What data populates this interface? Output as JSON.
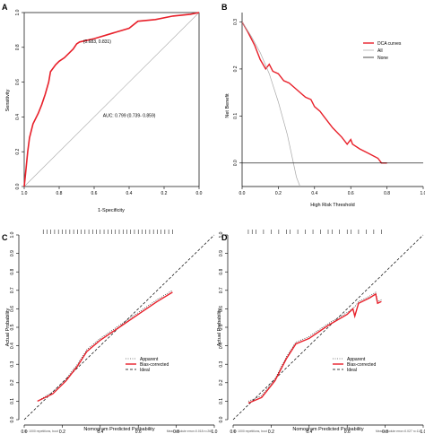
{
  "colors": {
    "red": "#e8202a",
    "grey": "#a8a8a8",
    "black": "#000000"
  },
  "chart_data": [
    {
      "panel": "A",
      "type": "line",
      "xlabel": "1-Specificity",
      "ylabel": "Sensitivity",
      "x_reversed": true,
      "xlim": [
        1.0,
        0.0
      ],
      "ylim": [
        0.0,
        1.0
      ],
      "xticks": [
        "1.0",
        "0.8",
        "0.6",
        "0.4",
        "0.2",
        "0.0"
      ],
      "yticks": [
        "0.0",
        "0.2",
        "0.4",
        "0.6",
        "0.8",
        "1.0"
      ],
      "point_label": "(0.683, 0.831)",
      "auc_label": "AUC: 0.799 (0.739- 0.859)",
      "series": [
        {
          "x": [
            1.0,
            0.99,
            0.98,
            0.97,
            0.95,
            0.92,
            0.9,
            0.88,
            0.86,
            0.85,
            0.82,
            0.8,
            0.77,
            0.74,
            0.72,
            0.7,
            0.683,
            0.6,
            0.5,
            0.4,
            0.35,
            0.25,
            0.15,
            0.05,
            0.0
          ],
          "y": [
            0.0,
            0.1,
            0.2,
            0.28,
            0.36,
            0.42,
            0.47,
            0.53,
            0.6,
            0.66,
            0.7,
            0.72,
            0.74,
            0.77,
            0.79,
            0.82,
            0.831,
            0.85,
            0.88,
            0.91,
            0.95,
            0.96,
            0.98,
            0.99,
            1.0
          ]
        },
        {
          "x": [
            1.0,
            0.0
          ],
          "y": [
            0.0,
            1.0
          ]
        }
      ]
    },
    {
      "panel": "B",
      "type": "line",
      "xlabel": "High Risk Threshold",
      "ylabel": "Net Benefit",
      "xlim": [
        0.0,
        1.0
      ],
      "ylim": [
        -0.05,
        0.32
      ],
      "xticks": [
        "0.0",
        "0.2",
        "0.4",
        "0.6",
        "0.8",
        "1.0"
      ],
      "yticks": [
        "0.0",
        "0.1",
        "0.2",
        "0.3"
      ],
      "legend": [
        "DCA curves",
        "All",
        "None"
      ],
      "series": [
        {
          "name": "DCA curves",
          "x": [
            0.0,
            0.03,
            0.07,
            0.1,
            0.13,
            0.15,
            0.17,
            0.2,
            0.23,
            0.26,
            0.29,
            0.32,
            0.35,
            0.38,
            0.4,
            0.43,
            0.45,
            0.5,
            0.55,
            0.58,
            0.6,
            0.61,
            0.65,
            0.7,
            0.75,
            0.77,
            0.8
          ],
          "y": [
            0.3,
            0.28,
            0.25,
            0.22,
            0.2,
            0.21,
            0.195,
            0.19,
            0.175,
            0.17,
            0.16,
            0.15,
            0.14,
            0.135,
            0.12,
            0.11,
            0.1,
            0.075,
            0.055,
            0.04,
            0.05,
            0.04,
            0.03,
            0.02,
            0.01,
            0.0,
            0.0
          ]
        },
        {
          "name": "All",
          "x": [
            0.0,
            0.05,
            0.1,
            0.15,
            0.2,
            0.25,
            0.3,
            0.35
          ],
          "y": [
            0.3,
            0.27,
            0.235,
            0.19,
            0.13,
            0.06,
            -0.03,
            -0.08
          ]
        },
        {
          "name": "None",
          "x": [
            0.0,
            1.0
          ],
          "y": [
            0.0,
            0.0
          ]
        }
      ]
    },
    {
      "panel": "C",
      "type": "line",
      "xlabel": "Nomogram Predicted Probability",
      "ylabel": "Actual Probability",
      "xlim": [
        0.0,
        1.0
      ],
      "ylim": [
        0.0,
        1.0
      ],
      "xticks": [
        "0.0",
        "0.2",
        "0.4",
        "0.6",
        "0.8",
        "1.0"
      ],
      "yticks": [
        "0.0",
        "0.1",
        "0.2",
        "0.3",
        "0.4",
        "0.5",
        "0.6",
        "0.7",
        "0.8",
        "0.9",
        "1.0"
      ],
      "legend": [
        "Apparent",
        "Bias-corrected",
        "Ideal"
      ],
      "footnote_left": "B= 1000 repetitions, boot",
      "footnote_right": "Mean absolute error=0.018 n=266",
      "rug": [
        0.1,
        0.12,
        0.14,
        0.16,
        0.18,
        0.2,
        0.22,
        0.24,
        0.26,
        0.28,
        0.3,
        0.32,
        0.34,
        0.36,
        0.38,
        0.4,
        0.42,
        0.44,
        0.46,
        0.48,
        0.5,
        0.52,
        0.54,
        0.56,
        0.58,
        0.6,
        0.62,
        0.64,
        0.66,
        0.68,
        0.7,
        0.72,
        0.74,
        0.76,
        0.78
      ],
      "series": [
        {
          "name": "Apparent",
          "x": [
            0.07,
            0.15,
            0.22,
            0.28,
            0.33,
            0.4,
            0.5,
            0.6,
            0.7,
            0.78
          ],
          "y": [
            0.1,
            0.15,
            0.22,
            0.3,
            0.38,
            0.44,
            0.51,
            0.58,
            0.65,
            0.7
          ]
        },
        {
          "name": "Bias-corrected",
          "x": [
            0.07,
            0.15,
            0.22,
            0.28,
            0.33,
            0.4,
            0.5,
            0.6,
            0.7,
            0.78
          ],
          "y": [
            0.1,
            0.14,
            0.21,
            0.29,
            0.37,
            0.43,
            0.5,
            0.57,
            0.64,
            0.69
          ]
        },
        {
          "name": "Ideal",
          "x": [
            0.0,
            1.0
          ],
          "y": [
            0.0,
            1.0
          ]
        }
      ]
    },
    {
      "panel": "D",
      "type": "line",
      "xlabel": "Nomogram Predicted Probability",
      "ylabel": "Actual Probability",
      "xlim": [
        0.0,
        1.0
      ],
      "ylim": [
        0.0,
        1.0
      ],
      "xticks": [
        "0.0",
        "0.2",
        "0.4",
        "0.6",
        "0.8",
        "1.0"
      ],
      "yticks": [
        "0.0",
        "0.1",
        "0.2",
        "0.3",
        "0.4",
        "0.5",
        "0.6",
        "0.7",
        "0.8",
        "0.9",
        "1.0"
      ],
      "legend": [
        "Apparent",
        "Bias-corrected",
        "Ideal"
      ],
      "footnote_left": "B= 1000 repetitions, boot",
      "footnote_right": "Mean absolute error=0.027 n=114",
      "rug": [
        0.08,
        0.1,
        0.12,
        0.16,
        0.2,
        0.24,
        0.28,
        0.3,
        0.34,
        0.38,
        0.42,
        0.46,
        0.5,
        0.52,
        0.56,
        0.6,
        0.62,
        0.66,
        0.7,
        0.74,
        0.78
      ],
      "series": [
        {
          "name": "Apparent",
          "x": [
            0.08,
            0.15,
            0.22,
            0.28,
            0.33,
            0.4,
            0.5,
            0.6,
            0.64,
            0.66,
            0.72,
            0.75,
            0.76,
            0.78
          ],
          "y": [
            0.1,
            0.13,
            0.22,
            0.34,
            0.42,
            0.45,
            0.52,
            0.58,
            0.61,
            0.64,
            0.67,
            0.69,
            0.64,
            0.65
          ]
        },
        {
          "name": "Bias-corrected",
          "x": [
            0.08,
            0.15,
            0.22,
            0.28,
            0.33,
            0.4,
            0.5,
            0.6,
            0.63,
            0.64,
            0.66,
            0.72,
            0.75,
            0.76,
            0.78
          ],
          "y": [
            0.09,
            0.12,
            0.21,
            0.33,
            0.41,
            0.44,
            0.51,
            0.57,
            0.6,
            0.56,
            0.63,
            0.66,
            0.68,
            0.63,
            0.64
          ]
        },
        {
          "name": "Ideal",
          "x": [
            0.0,
            1.0
          ],
          "y": [
            0.0,
            1.0
          ]
        }
      ]
    }
  ]
}
